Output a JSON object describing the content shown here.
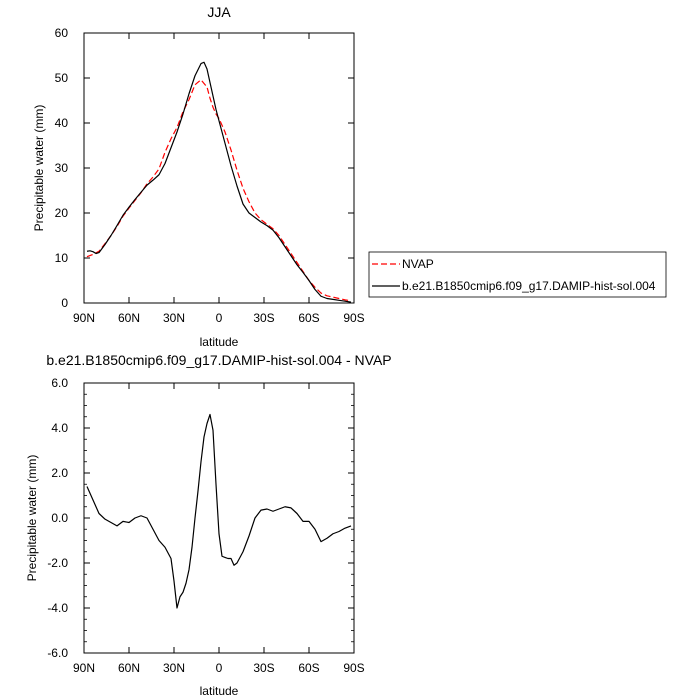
{
  "chart_data": [
    {
      "type": "line",
      "title": "JJA",
      "xlabel": "latitude",
      "ylabel": "Precipitable water (mm)",
      "x_tick_labels": [
        "90N",
        "60N",
        "30N",
        "0",
        "30S",
        "60S",
        "90S"
      ],
      "x_tick_values": [
        90,
        60,
        30,
        0,
        -30,
        -60,
        -90
      ],
      "xlim": [
        90,
        -90
      ],
      "ylim": [
        0,
        60
      ],
      "y_tick_labels": [
        "0",
        "10",
        "20",
        "30",
        "40",
        "50",
        "60"
      ],
      "y_tick_values": [
        0,
        10,
        20,
        30,
        40,
        50,
        60
      ],
      "legend": {
        "position": "right"
      },
      "series": [
        {
          "name": "NVAP",
          "color": "#ff0000",
          "style": "dashed",
          "x": [
            88,
            84,
            80,
            76,
            72,
            68,
            64,
            60,
            56,
            52,
            48,
            44,
            40,
            36,
            32,
            28,
            24,
            20,
            16,
            12,
            8,
            6,
            4,
            2,
            0,
            -2,
            -4,
            -8,
            -12,
            -16,
            -20,
            -24,
            -28,
            -32,
            -36,
            -40,
            -44,
            -48,
            -52,
            -56,
            -60,
            -64,
            -68,
            -72,
            -76,
            -80,
            -84,
            -88
          ],
          "y": [
            10.3,
            10.8,
            11.5,
            13.2,
            15.0,
            17.0,
            19.3,
            21.1,
            22.8,
            24.5,
            26.5,
            28.0,
            29.8,
            33.5,
            36.5,
            39.0,
            42.5,
            45.2,
            48.5,
            49.6,
            48.0,
            45.5,
            43.5,
            42.0,
            41.0,
            39.5,
            38.0,
            34.0,
            29.5,
            25.5,
            22.5,
            20.0,
            18.5,
            17.5,
            16.5,
            15.0,
            13.0,
            11.0,
            9.0,
            7.0,
            5.0,
            3.5,
            2.2,
            1.6,
            1.3,
            1.0,
            0.7,
            0.5
          ]
        },
        {
          "name": "b.e21.B1850cmip6.f09_g17.DAMIP-hist-sol.004",
          "color": "#000000",
          "style": "solid",
          "x": [
            88,
            86,
            84,
            82,
            80,
            76,
            72,
            68,
            64,
            60,
            56,
            52,
            48,
            44,
            40,
            36,
            32,
            28,
            24,
            20,
            16,
            12,
            10,
            8,
            6,
            4,
            2,
            0,
            -2,
            -4,
            -8,
            -12,
            -16,
            -20,
            -24,
            -28,
            -32,
            -36,
            -40,
            -44,
            -48,
            -52,
            -56,
            -60,
            -64,
            -68,
            -72,
            -76,
            -80,
            -84,
            -88
          ],
          "y": [
            11.5,
            11.6,
            11.4,
            11.0,
            11.2,
            13.0,
            15.0,
            17.2,
            19.5,
            21.3,
            23.0,
            24.6,
            26.2,
            27.3,
            28.5,
            31.0,
            34.5,
            38.0,
            42.0,
            46.5,
            50.5,
            53.2,
            53.5,
            52.0,
            49.0,
            46.0,
            43.0,
            40.5,
            38.0,
            35.5,
            30.5,
            26.0,
            22.0,
            20.0,
            19.0,
            18.0,
            17.2,
            16.2,
            14.5,
            12.5,
            10.5,
            8.5,
            6.8,
            5.0,
            3.0,
            1.5,
            1.0,
            0.8,
            0.6,
            0.4,
            0.2
          ]
        }
      ]
    },
    {
      "type": "line",
      "title": "b.e21.B1850cmip6.f09_g17.DAMIP-hist-sol.004 - NVAP",
      "xlabel": "latitude",
      "ylabel": "Precipitable water (mm)",
      "x_tick_labels": [
        "90N",
        "60N",
        "30N",
        "0",
        "30S",
        "60S",
        "90S"
      ],
      "x_tick_values": [
        90,
        60,
        30,
        0,
        -30,
        -60,
        -90
      ],
      "xlim": [
        90,
        -90
      ],
      "ylim": [
        -6,
        6
      ],
      "y_tick_labels": [
        "-6.0",
        "-4.0",
        "-2.0",
        "0.0",
        "2.0",
        "4.0",
        "6.0"
      ],
      "y_tick_values": [
        -6,
        -4,
        -2,
        0,
        2,
        4,
        6
      ],
      "series": [
        {
          "color": "#000000",
          "style": "solid",
          "x": [
            88,
            84,
            80,
            76,
            72,
            68,
            64,
            60,
            56,
            52,
            48,
            44,
            40,
            36,
            32,
            30,
            28,
            26,
            24,
            22,
            20,
            18,
            16,
            14,
            12,
            10,
            8,
            6,
            4,
            2,
            0,
            -2,
            -4,
            -6,
            -8,
            -10,
            -12,
            -16,
            -20,
            -24,
            -28,
            -32,
            -36,
            -40,
            -44,
            -48,
            -52,
            -56,
            -60,
            -64,
            -68,
            -72,
            -76,
            -80,
            -84,
            -88
          ],
          "y": [
            1.4,
            0.8,
            0.2,
            -0.05,
            -0.2,
            -0.35,
            -0.15,
            -0.2,
            0.0,
            0.1,
            0.0,
            -0.5,
            -1.0,
            -1.3,
            -1.8,
            -2.8,
            -4.0,
            -3.5,
            -3.3,
            -2.9,
            -2.3,
            -1.3,
            0.0,
            1.2,
            2.5,
            3.6,
            4.2,
            4.6,
            3.9,
            1.5,
            -0.7,
            -1.7,
            -1.75,
            -1.8,
            -1.8,
            -2.1,
            -2.0,
            -1.5,
            -0.8,
            0.0,
            0.35,
            0.4,
            0.3,
            0.4,
            0.5,
            0.45,
            0.2,
            -0.15,
            -0.15,
            -0.5,
            -1.05,
            -0.9,
            -0.7,
            -0.6,
            -0.45,
            -0.35
          ]
        }
      ]
    }
  ]
}
